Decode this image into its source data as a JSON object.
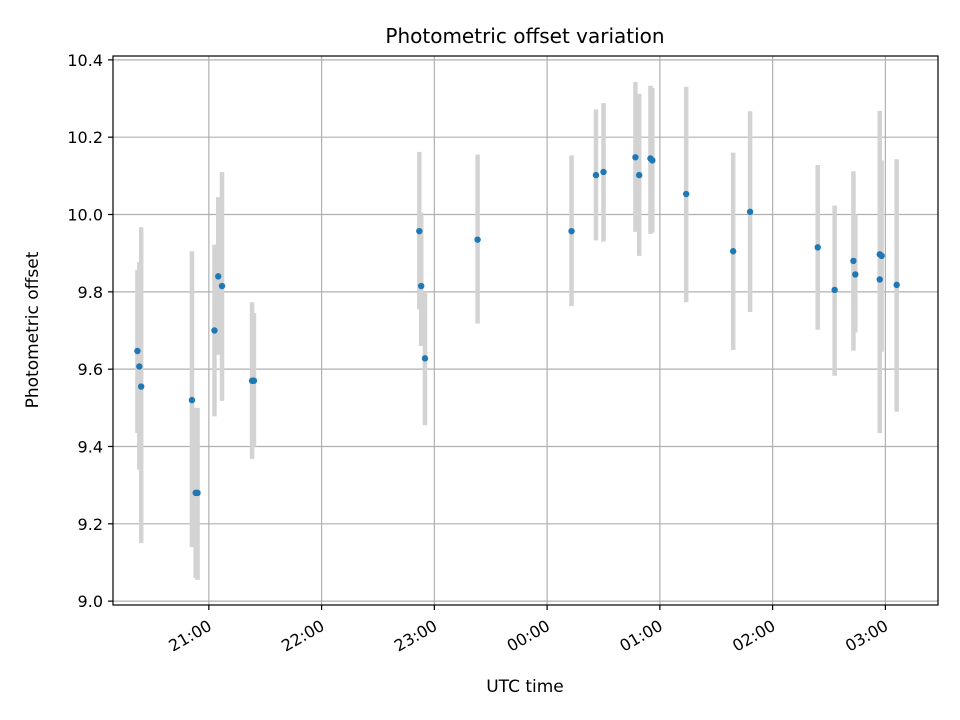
{
  "chart_data": {
    "type": "scatter",
    "title": "Photometric offset variation",
    "xlabel": "UTC time",
    "ylabel": "Photometric offset",
    "grid": true,
    "ylim": [
      8.99,
      10.41
    ],
    "xlim": [
      "20:09",
      "03:28"
    ],
    "yticks": [
      "9.0",
      "9.2",
      "9.4",
      "9.6",
      "9.8",
      "10.0",
      "10.2",
      "10.4"
    ],
    "xticks": [
      "21:00",
      "22:00",
      "23:00",
      "00:00",
      "01:00",
      "02:00",
      "03:00"
    ],
    "colors": {
      "points": "#1f77b4",
      "errorbars": "#d3d3d3",
      "grid": "#b0b0b0"
    },
    "points": [
      {
        "x": "20:22",
        "y": 9.647,
        "err_low": 9.435,
        "err_high": 9.857
      },
      {
        "x": "20:23",
        "y": 9.607,
        "err_low": 9.34,
        "err_high": 9.877
      },
      {
        "x": "20:24",
        "y": 9.555,
        "err_low": 9.15,
        "err_high": 9.967
      },
      {
        "x": "20:51",
        "y": 9.52,
        "err_low": 9.14,
        "err_high": 9.905
      },
      {
        "x": "20:53",
        "y": 9.28,
        "err_low": 9.06,
        "err_high": 9.5
      },
      {
        "x": "20:54",
        "y": 9.28,
        "err_low": 9.055,
        "err_high": 9.5
      },
      {
        "x": "21:03",
        "y": 9.7,
        "err_low": 9.478,
        "err_high": 9.922
      },
      {
        "x": "21:05",
        "y": 9.84,
        "err_low": 9.637,
        "err_high": 10.045
      },
      {
        "x": "21:07",
        "y": 9.815,
        "err_low": 9.518,
        "err_high": 10.11
      },
      {
        "x": "21:23",
        "y": 9.57,
        "err_low": 9.368,
        "err_high": 9.773
      },
      {
        "x": "21:24",
        "y": 9.57,
        "err_low": 9.4,
        "err_high": 9.745
      },
      {
        "x": "22:52",
        "y": 9.957,
        "err_low": 9.755,
        "err_high": 10.162
      },
      {
        "x": "22:53",
        "y": 9.815,
        "err_low": 9.66,
        "err_high": 10.005
      },
      {
        "x": "22:55",
        "y": 9.628,
        "err_low": 9.455,
        "err_high": 9.8
      },
      {
        "x": "23:23",
        "y": 9.935,
        "err_low": 9.718,
        "err_high": 10.155
      },
      {
        "x": "00:13",
        "y": 9.957,
        "err_low": 9.763,
        "err_high": 10.153
      },
      {
        "x": "00:26",
        "y": 10.102,
        "err_low": 9.933,
        "err_high": 10.272
      },
      {
        "x": "00:30",
        "y": 10.11,
        "err_low": 9.93,
        "err_high": 10.288
      },
      {
        "x": "00:47",
        "y": 10.148,
        "err_low": 9.955,
        "err_high": 10.343
      },
      {
        "x": "00:49",
        "y": 10.102,
        "err_low": 9.893,
        "err_high": 10.312
      },
      {
        "x": "00:55",
        "y": 10.145,
        "err_low": 9.95,
        "err_high": 10.333
      },
      {
        "x": "00:56",
        "y": 10.14,
        "err_low": 9.953,
        "err_high": 10.327
      },
      {
        "x": "01:14",
        "y": 10.053,
        "err_low": 9.773,
        "err_high": 10.33
      },
      {
        "x": "01:39",
        "y": 9.905,
        "err_low": 9.65,
        "err_high": 10.16
      },
      {
        "x": "01:48",
        "y": 10.007,
        "err_low": 9.748,
        "err_high": 10.267
      },
      {
        "x": "02:24",
        "y": 9.915,
        "err_low": 9.702,
        "err_high": 10.128
      },
      {
        "x": "02:33",
        "y": 9.805,
        "err_low": 9.583,
        "err_high": 10.023
      },
      {
        "x": "02:43",
        "y": 9.88,
        "err_low": 9.648,
        "err_high": 10.112
      },
      {
        "x": "02:44",
        "y": 9.845,
        "err_low": 9.695,
        "err_high": 10.0
      },
      {
        "x": "02:57",
        "y": 9.897,
        "err_low": 9.522,
        "err_high": 10.268
      },
      {
        "x": "02:57",
        "y": 9.832,
        "err_low": 9.435,
        "err_high": 10.22
      },
      {
        "x": "02:58",
        "y": 9.893,
        "err_low": 9.645,
        "err_high": 10.14
      },
      {
        "x": "03:06",
        "y": 9.818,
        "err_low": 9.49,
        "err_high": 10.143
      }
    ]
  }
}
